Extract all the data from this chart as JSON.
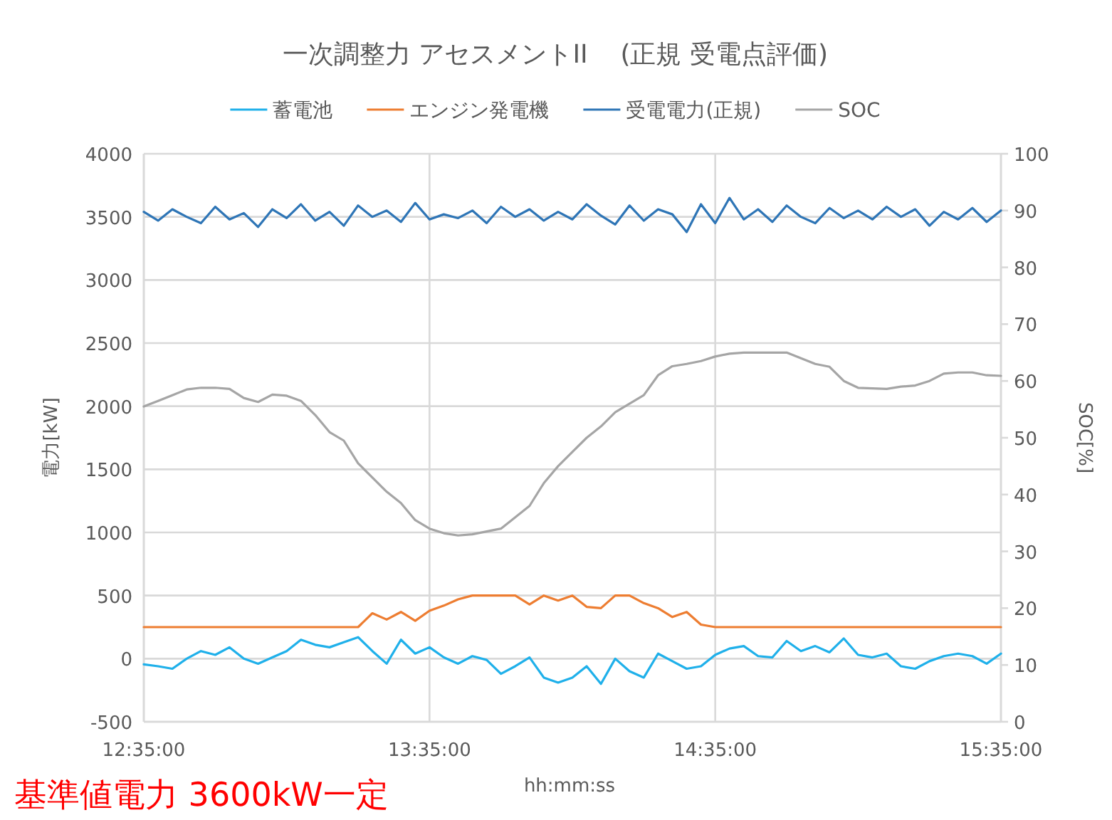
{
  "chart_data": {
    "type": "line",
    "title": "一次調整力 アセスメントII    (正規 受電点評価)",
    "xlabel": "hh:mm:ss",
    "ylabel": "電力[kW]",
    "y2label": "SOC[%]",
    "annotations": [
      "基準値電力 3600kW一定"
    ],
    "x": [
      12.5833,
      12.6333,
      12.6833,
      12.7333,
      12.7833,
      12.8333,
      12.8833,
      12.9333,
      12.9833,
      13.0333,
      13.0833,
      13.1333,
      13.1833,
      13.2333,
      13.2833,
      13.3333,
      13.3833,
      13.4333,
      13.4833,
      13.5333,
      13.5833,
      13.6333,
      13.6833,
      13.7333,
      13.7833,
      13.8333,
      13.8833,
      13.9333,
      13.9833,
      14.0333,
      14.0833,
      14.1333,
      14.1833,
      14.2333,
      14.2833,
      14.3333,
      14.3833,
      14.4333,
      14.4833,
      14.5333,
      14.5833,
      14.6333,
      14.6833,
      14.7333,
      14.7833,
      14.8333,
      14.8833,
      14.9333,
      14.9833,
      15.0333,
      15.0833,
      15.1333,
      15.1833,
      15.2333,
      15.2833,
      15.3333,
      15.3833,
      15.4333,
      15.4833,
      15.5333,
      15.5833
    ],
    "series": [
      {
        "name": "蓄電池",
        "color": "#1fb0ea",
        "values": [
          -45,
          -60,
          -80,
          0,
          60,
          30,
          90,
          0,
          -40,
          10,
          60,
          150,
          110,
          90,
          130,
          170,
          60,
          -40,
          150,
          40,
          90,
          10,
          -40,
          20,
          -10,
          -120,
          -60,
          10,
          -150,
          -190,
          -150,
          -60,
          -200,
          0,
          -100,
          -150,
          40,
          -20,
          -80,
          -60,
          30,
          80,
          100,
          20,
          10,
          140,
          60,
          100,
          50,
          160,
          30,
          10,
          40,
          -60,
          -80,
          -20,
          20,
          40,
          20,
          -40,
          40
        ]
      },
      {
        "name": "エンジン発電機",
        "color": "#ed7d31",
        "values": [
          250,
          250,
          250,
          250,
          250,
          250,
          250,
          250,
          250,
          250,
          250,
          250,
          250,
          250,
          250,
          250,
          360,
          310,
          370,
          300,
          380,
          420,
          470,
          500,
          500,
          500,
          500,
          430,
          500,
          460,
          500,
          410,
          400,
          500,
          500,
          440,
          400,
          330,
          370,
          270,
          250,
          250,
          250,
          250,
          250,
          250,
          250,
          250,
          250,
          250,
          250,
          250,
          250,
          250,
          250,
          250,
          250,
          250,
          250,
          250,
          250
        ]
      },
      {
        "name": "受電電力(正規)",
        "color": "#2e75b6",
        "values": [
          3540,
          3470,
          3560,
          3500,
          3450,
          3580,
          3480,
          3530,
          3420,
          3560,
          3490,
          3600,
          3470,
          3540,
          3430,
          3590,
          3500,
          3550,
          3460,
          3610,
          3480,
          3520,
          3490,
          3550,
          3450,
          3580,
          3500,
          3560,
          3470,
          3540,
          3480,
          3600,
          3510,
          3440,
          3590,
          3470,
          3560,
          3520,
          3380,
          3600,
          3450,
          3650,
          3480,
          3560,
          3460,
          3590,
          3500,
          3450,
          3570,
          3490,
          3550,
          3480,
          3580,
          3500,
          3560,
          3430,
          3540,
          3480,
          3570,
          3460,
          3550
        ]
      },
      {
        "name": "SOC",
        "color": "#a5a5a5",
        "axis": "y2",
        "values": [
          55.5,
          56.5,
          57.5,
          58.5,
          58.8,
          58.8,
          58.6,
          57,
          56.3,
          57.6,
          57.4,
          56.5,
          54,
          51,
          49.5,
          45.5,
          43,
          40.5,
          38.5,
          35.5,
          34,
          33.2,
          32.8,
          33,
          33.5,
          34,
          36,
          38,
          42,
          45,
          47.5,
          50,
          52,
          54.5,
          56,
          57.5,
          61,
          62.6,
          63,
          63.5,
          64.3,
          64.8,
          65,
          65,
          65,
          65,
          64,
          63,
          62.5,
          60,
          58.8,
          58.7,
          58.6,
          59,
          59.2,
          60,
          61.3,
          61.5,
          61.5,
          61,
          60.9
        ]
      }
    ],
    "xlim": [
      12.5833,
      15.5833
    ],
    "xticks": [
      {
        "value": 12.5833,
        "label": "12:35:00"
      },
      {
        "value": 13.5833,
        "label": "13:35:00"
      },
      {
        "value": 14.5833,
        "label": "14:35:00"
      },
      {
        "value": 15.5833,
        "label": "15:35:00"
      }
    ],
    "ylim": [
      -500,
      4000
    ],
    "yticks": [
      -500,
      0,
      500,
      1000,
      1500,
      2000,
      2500,
      3000,
      3500,
      4000
    ],
    "y2lim": [
      0,
      100
    ],
    "y2ticks": [
      0,
      10,
      20,
      30,
      40,
      50,
      60,
      70,
      80,
      90,
      100
    ],
    "grid": true,
    "legend": "top"
  }
}
